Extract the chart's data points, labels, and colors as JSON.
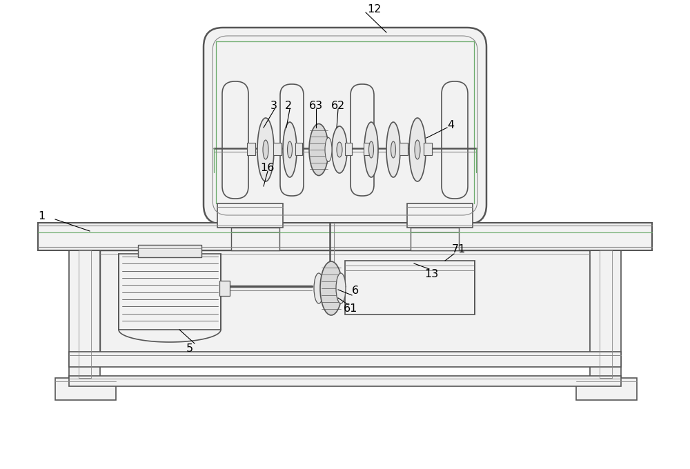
{
  "bg_color": "#ffffff",
  "lc": "#555555",
  "gc": "#6aaa6a",
  "lc_light": "#888888",
  "fc_light": "#f2f2f2",
  "fc_mid": "#e8e8e8",
  "fc_dark": "#d8d8d8"
}
